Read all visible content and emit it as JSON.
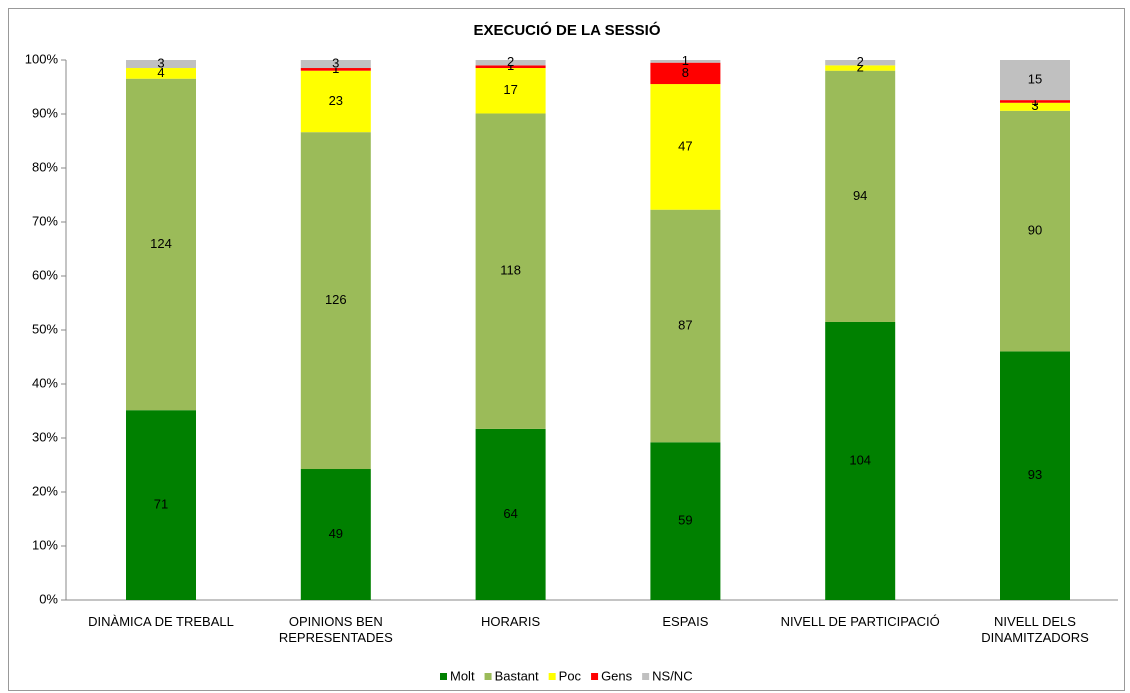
{
  "chart_data": {
    "type": "stacked_percent_bar",
    "title": "EXECUCIÓ DE LA SESSIÓ",
    "categories": [
      "DINÀMICA DE TREBALL",
      "OPINIONS BEN REPRESENTADES",
      "HORARIS",
      "ESPAIS",
      "NIVELL DE PARTICIPACIÓ",
      "NIVELL DELS DINAMITZADORS"
    ],
    "series": [
      {
        "name": "Molt",
        "color": "#008000",
        "values": [
          71,
          49,
          64,
          59,
          104,
          93
        ]
      },
      {
        "name": "Bastant",
        "color": "#9bbb59",
        "values": [
          124,
          126,
          118,
          87,
          94,
          90
        ]
      },
      {
        "name": "Poc",
        "color": "#ffff00",
        "values": [
          4,
          23,
          17,
          47,
          2,
          3
        ]
      },
      {
        "name": "Gens",
        "color": "#ff0000",
        "values": [
          null,
          1,
          1,
          8,
          null,
          1
        ]
      },
      {
        "name": "NS/NC",
        "color": "#c0c0c0",
        "values": [
          3,
          3,
          2,
          1,
          2,
          15
        ]
      }
    ],
    "ylim": [
      0,
      100
    ],
    "yticks": [
      {
        "value": 0,
        "label": "0%"
      },
      {
        "value": 10,
        "label": "10%"
      },
      {
        "value": 20,
        "label": "20%"
      },
      {
        "value": 30,
        "label": "30%"
      },
      {
        "value": 40,
        "label": "40%"
      },
      {
        "value": 50,
        "label": "50%"
      },
      {
        "value": 60,
        "label": "60%"
      },
      {
        "value": 70,
        "label": "70%"
      },
      {
        "value": 80,
        "label": "80%"
      },
      {
        "value": 90,
        "label": "90%"
      },
      {
        "value": 100,
        "label": "100%"
      }
    ],
    "grid": false
  }
}
